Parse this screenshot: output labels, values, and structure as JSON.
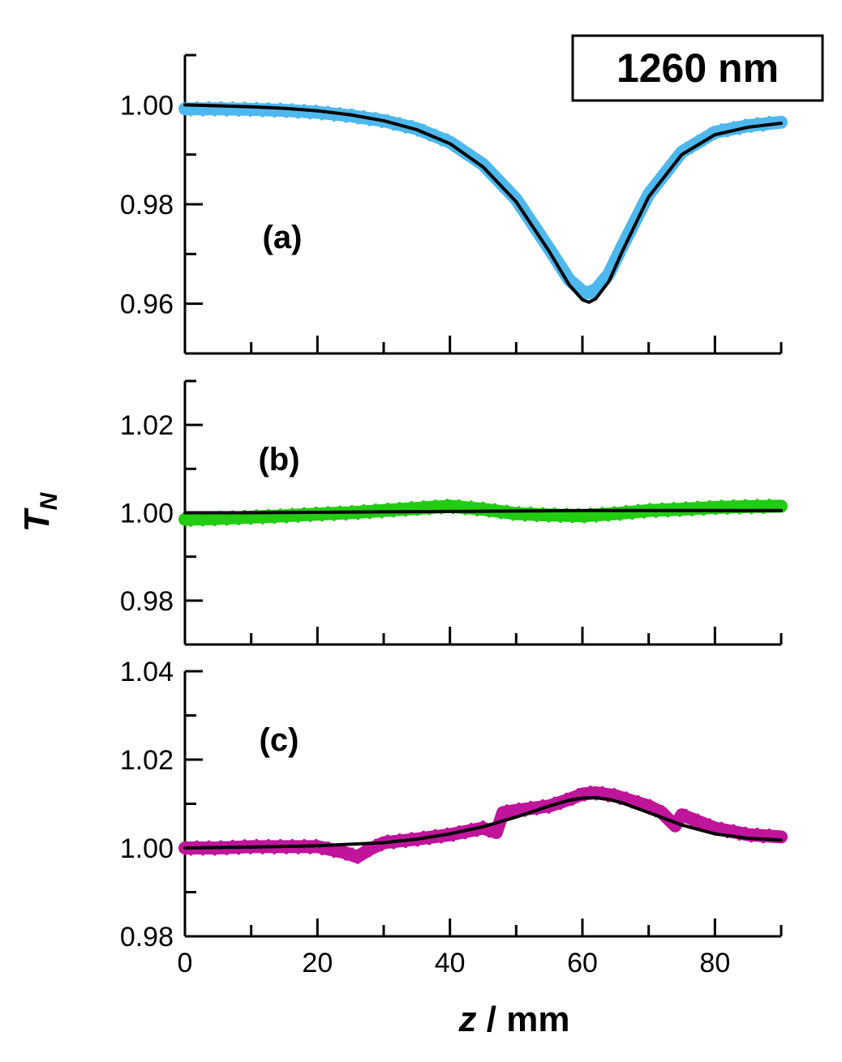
{
  "chart_data": {
    "type": "scatter",
    "title": "1260 nm",
    "xlabel_var": "z",
    "xlabel_unit": " / mm",
    "ylabel_var": "T",
    "ylabel_sub": "N",
    "xlim": [
      0,
      90
    ],
    "xticks": [
      "0",
      "20",
      "40",
      "60",
      "80"
    ],
    "xtick_values": [
      0,
      20,
      40,
      60,
      80
    ],
    "panels": [
      {
        "label": "(a)",
        "ylim": [
          0.95,
          1.01
        ],
        "yticks": [
          "1.00",
          "0.98",
          "0.96"
        ],
        "ytick_values": [
          1.0,
          0.98,
          0.96
        ],
        "data_color": "#4db8ee",
        "fit_color": "#000000",
        "data": {
          "z": [
            0,
            5,
            10,
            15,
            20,
            25,
            30,
            35,
            40,
            45,
            50,
            55,
            58,
            60,
            61,
            62,
            64,
            66,
            70,
            75,
            80,
            85,
            90
          ],
          "T": [
            0.9992,
            0.9992,
            0.9991,
            0.9989,
            0.9985,
            0.9978,
            0.9968,
            0.9952,
            0.9925,
            0.988,
            0.981,
            0.971,
            0.9648,
            0.9625,
            0.9622,
            0.9628,
            0.966,
            0.9715,
            0.982,
            0.9905,
            0.9945,
            0.9958,
            0.9965
          ]
        },
        "fit": {
          "z": [
            0,
            5,
            10,
            15,
            20,
            25,
            30,
            35,
            40,
            45,
            50,
            55,
            58,
            60,
            61,
            62,
            64,
            66,
            70,
            75,
            80,
            85,
            90
          ],
          "T": [
            1.0,
            0.9998,
            0.9996,
            0.9993,
            0.9988,
            0.998,
            0.9968,
            0.995,
            0.9922,
            0.9875,
            0.9805,
            0.9705,
            0.9638,
            0.9608,
            0.9603,
            0.961,
            0.9645,
            0.9705,
            0.9815,
            0.99,
            0.994,
            0.9955,
            0.9963
          ]
        }
      },
      {
        "label": "(b)",
        "ylim": [
          0.97,
          1.03
        ],
        "yticks": [
          "1.02",
          "1.00",
          "0.98"
        ],
        "ytick_values": [
          1.02,
          1.0,
          0.98
        ],
        "data_color": "#22cc11",
        "fit_color": "#000000",
        "data": {
          "z": [
            0,
            5,
            10,
            15,
            20,
            25,
            30,
            35,
            40,
            45,
            50,
            55,
            60,
            65,
            70,
            75,
            80,
            85,
            90
          ],
          "T": [
            0.9985,
            0.9987,
            0.999,
            0.9993,
            0.9997,
            1.0,
            1.0005,
            1.001,
            1.0015,
            1.0008,
            0.9998,
            0.9995,
            0.9993,
            0.9998,
            1.0005,
            1.0008,
            1.0012,
            1.0014,
            1.0015
          ]
        },
        "fit": {
          "z": [
            0,
            10,
            20,
            30,
            40,
            50,
            60,
            70,
            80,
            90
          ],
          "T": [
            1.0,
            1.0,
            1.0001,
            1.0002,
            1.0003,
            1.0004,
            1.0005,
            1.0005,
            1.0005,
            1.0005
          ]
        }
      },
      {
        "label": "(c)",
        "ylim": [
          0.98,
          1.04
        ],
        "yticks": [
          "1.04",
          "1.02",
          "1.00",
          "0.98"
        ],
        "ytick_values": [
          1.04,
          1.02,
          1.0,
          0.98
        ],
        "data_color": "#c0149b",
        "fit_color": "#000000",
        "data": {
          "z": [
            0,
            5,
            10,
            15,
            20,
            24,
            26,
            28,
            30,
            35,
            40,
            45,
            47,
            48,
            50,
            55,
            58,
            60,
            62,
            65,
            70,
            72,
            74,
            75,
            80,
            85,
            90
          ],
          "T": [
            1.0,
            1.0,
            1.0003,
            1.0003,
            1.0003,
            0.999,
            0.998,
            0.9998,
            1.0012,
            1.002,
            1.003,
            1.0045,
            1.0035,
            1.008,
            1.0085,
            1.0095,
            1.011,
            1.0122,
            1.0125,
            1.0118,
            1.0095,
            1.008,
            1.005,
            1.0075,
            1.0045,
            1.003,
            1.0025
          ]
        },
        "fit": {
          "z": [
            0,
            10,
            20,
            30,
            35,
            40,
            45,
            50,
            55,
            58,
            60,
            62,
            64,
            66,
            70,
            75,
            80,
            85,
            90
          ],
          "T": [
            1.0,
            1.0002,
            1.0005,
            1.0012,
            1.002,
            1.0032,
            1.0048,
            1.007,
            1.0095,
            1.0108,
            1.0113,
            1.0114,
            1.011,
            1.0102,
            1.008,
            1.0052,
            1.0032,
            1.0022,
            1.0018
          ]
        }
      }
    ]
  }
}
